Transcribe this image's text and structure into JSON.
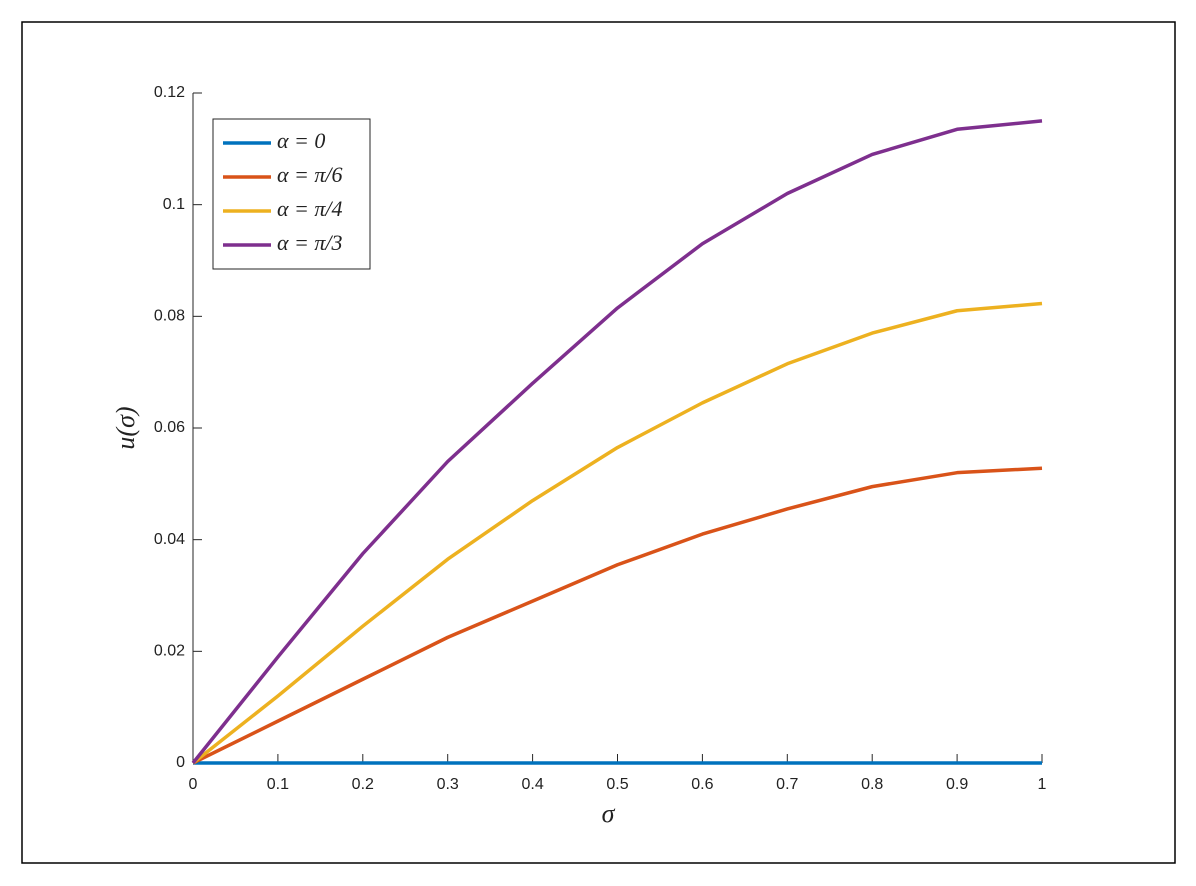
{
  "chart_data": {
    "type": "line",
    "xlabel": "σ",
    "ylabel": "u(σ)",
    "x": [
      0,
      0.1,
      0.2,
      0.3,
      0.4,
      0.5,
      0.6,
      0.7,
      0.8,
      0.9,
      1
    ],
    "series": [
      {
        "name": "α = 0",
        "color": "#0072bd",
        "values": [
          0,
          0,
          0,
          0,
          0,
          0,
          0,
          0,
          0,
          0,
          0
        ]
      },
      {
        "name": "α = π/6",
        "color": "#d95319",
        "values": [
          0,
          0.0075,
          0.015,
          0.0225,
          0.029,
          0.0355,
          0.041,
          0.0455,
          0.0495,
          0.052,
          0.0528
        ]
      },
      {
        "name": "α = π/4",
        "color": "#edb120",
        "values": [
          0,
          0.012,
          0.0245,
          0.0365,
          0.047,
          0.0565,
          0.0645,
          0.0715,
          0.077,
          0.081,
          0.0823
        ]
      },
      {
        "name": "α = π/3",
        "color": "#7e2f8e",
        "values": [
          0,
          0.019,
          0.0375,
          0.054,
          0.068,
          0.0815,
          0.093,
          0.102,
          0.109,
          0.1135,
          0.115
        ]
      }
    ],
    "xlim": [
      0,
      1
    ],
    "xticks": [
      0,
      0.1,
      0.2,
      0.3,
      0.4,
      0.5,
      0.6,
      0.7,
      0.8,
      0.9,
      1
    ],
    "ylim": [
      0,
      0.12
    ],
    "yticks": [
      0,
      0.02,
      0.04,
      0.06,
      0.08,
      0.1,
      0.12
    ],
    "legend": "top-left",
    "grid": false
  }
}
